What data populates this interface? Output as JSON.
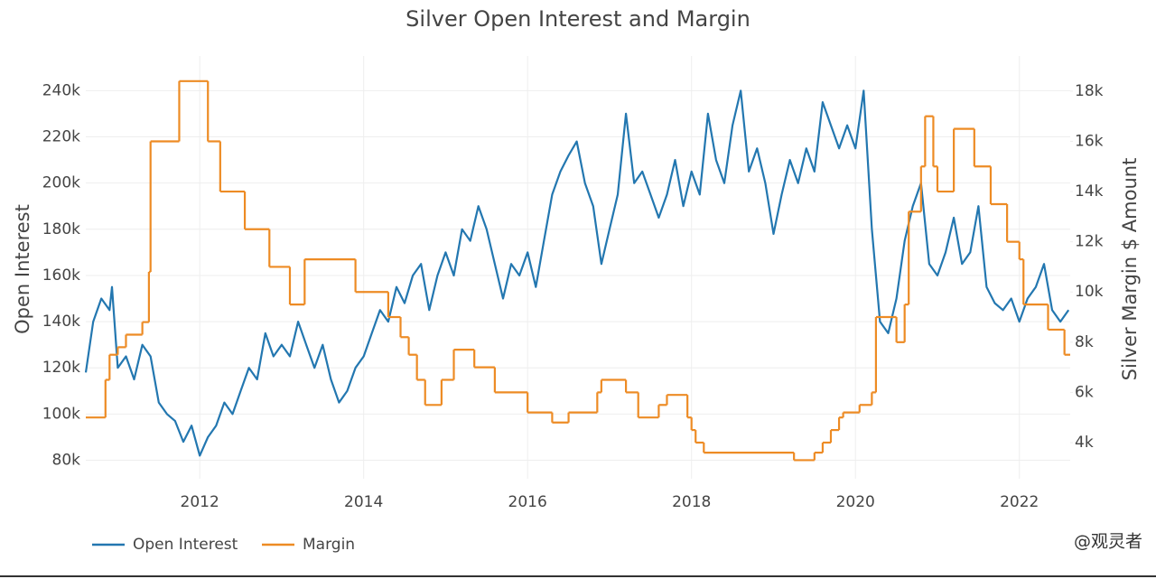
{
  "chart_data": {
    "type": "line",
    "title": "Silver Open Interest and Margin",
    "y_label": "Open Interest",
    "y2_label": "Silver Margin $ Amount",
    "xlim": [
      2010.61,
      2022.62
    ],
    "xticks": [
      2012,
      2014,
      2016,
      2018,
      2020,
      2022
    ],
    "ylim": [
      72000,
      255000
    ],
    "yticks": [
      {
        "value": 80000,
        "label": "80k"
      },
      {
        "value": 100000,
        "label": "100k"
      },
      {
        "value": 120000,
        "label": "120k"
      },
      {
        "value": 140000,
        "label": "140k"
      },
      {
        "value": 160000,
        "label": "160k"
      },
      {
        "value": 180000,
        "label": "180k"
      },
      {
        "value": 200000,
        "label": "200k"
      },
      {
        "value": 220000,
        "label": "220k"
      },
      {
        "value": 240000,
        "label": "240k"
      }
    ],
    "y2lim": [
      2560,
      19400
    ],
    "y2ticks": [
      {
        "value": 4000,
        "label": "4k"
      },
      {
        "value": 6000,
        "label": "6k"
      },
      {
        "value": 8000,
        "label": "8k"
      },
      {
        "value": 10000,
        "label": "10k"
      },
      {
        "value": 12000,
        "label": "12k"
      },
      {
        "value": 14000,
        "label": "14k"
      },
      {
        "value": 16000,
        "label": "16k"
      },
      {
        "value": 18000,
        "label": "18k"
      }
    ],
    "grid": true,
    "legend": "bottom-left",
    "watermark": "@观灵者",
    "series": [
      {
        "name": "Open Interest",
        "color": "#2377b0",
        "axis": "y",
        "shape": "linear",
        "x": [
          2010.61,
          2010.7,
          2010.8,
          2010.9,
          2010.93,
          2011.0,
          2011.1,
          2011.2,
          2011.3,
          2011.4,
          2011.5,
          2011.6,
          2011.7,
          2011.8,
          2011.9,
          2012.0,
          2012.1,
          2012.2,
          2012.3,
          2012.4,
          2012.5,
          2012.6,
          2012.7,
          2012.8,
          2012.9,
          2013.0,
          2013.1,
          2013.2,
          2013.3,
          2013.4,
          2013.5,
          2013.6,
          2013.7,
          2013.8,
          2013.9,
          2014.0,
          2014.1,
          2014.2,
          2014.3,
          2014.4,
          2014.5,
          2014.6,
          2014.7,
          2014.8,
          2014.9,
          2015.0,
          2015.1,
          2015.2,
          2015.3,
          2015.4,
          2015.5,
          2015.6,
          2015.7,
          2015.8,
          2015.9,
          2016.0,
          2016.1,
          2016.2,
          2016.3,
          2016.4,
          2016.5,
          2016.6,
          2016.7,
          2016.8,
          2016.9,
          2017.0,
          2017.1,
          2017.2,
          2017.3,
          2017.4,
          2017.5,
          2017.6,
          2017.7,
          2017.8,
          2017.9,
          2018.0,
          2018.1,
          2018.2,
          2018.3,
          2018.4,
          2018.5,
          2018.6,
          2018.7,
          2018.8,
          2018.9,
          2019.0,
          2019.1,
          2019.2,
          2019.3,
          2019.4,
          2019.5,
          2019.6,
          2019.7,
          2019.8,
          2019.9,
          2020.0,
          2020.1,
          2020.2,
          2020.3,
          2020.4,
          2020.5,
          2020.6,
          2020.7,
          2020.8,
          2020.9,
          2021.0,
          2021.1,
          2021.2,
          2021.3,
          2021.4,
          2021.5,
          2021.6,
          2021.7,
          2021.8,
          2021.9,
          2022.0,
          2022.1,
          2022.2,
          2022.3,
          2022.4,
          2022.5,
          2022.6
        ],
        "values": [
          118000,
          140000,
          150000,
          145000,
          155000,
          120000,
          125000,
          115000,
          130000,
          125000,
          105000,
          100000,
          97000,
          88000,
          95000,
          82000,
          90000,
          95000,
          105000,
          100000,
          110000,
          120000,
          115000,
          135000,
          125000,
          130000,
          125000,
          140000,
          130000,
          120000,
          130000,
          115000,
          105000,
          110000,
          120000,
          125000,
          135000,
          145000,
          140000,
          155000,
          148000,
          160000,
          165000,
          145000,
          160000,
          170000,
          160000,
          180000,
          175000,
          190000,
          180000,
          165000,
          150000,
          165000,
          160000,
          170000,
          155000,
          175000,
          195000,
          205000,
          212000,
          218000,
          200000,
          190000,
          165000,
          180000,
          195000,
          230000,
          200000,
          205000,
          195000,
          185000,
          195000,
          210000,
          190000,
          205000,
          195000,
          230000,
          210000,
          200000,
          225000,
          240000,
          205000,
          215000,
          200000,
          178000,
          195000,
          210000,
          200000,
          215000,
          205000,
          235000,
          225000,
          215000,
          225000,
          215000,
          240000,
          180000,
          140000,
          135000,
          150000,
          175000,
          190000,
          200000,
          165000,
          160000,
          170000,
          185000,
          165000,
          170000,
          190000,
          155000,
          148000,
          145000,
          150000,
          140000,
          150000,
          155000,
          165000,
          145000,
          140000,
          145000
        ]
      },
      {
        "name": "Margin",
        "color": "#ed8b24",
        "axis": "y2",
        "shape": "step",
        "x": [
          2010.61,
          2010.85,
          2010.9,
          2011.0,
          2011.1,
          2011.3,
          2011.38,
          2011.4,
          2011.75,
          2012.1,
          2012.25,
          2012.55,
          2012.85,
          2013.1,
          2013.28,
          2013.9,
          2014.3,
          2014.45,
          2014.55,
          2014.65,
          2014.75,
          2014.95,
          2015.1,
          2015.35,
          2015.6,
          2016.0,
          2016.3,
          2016.5,
          2016.85,
          2016.9,
          2017.2,
          2017.35,
          2017.6,
          2017.7,
          2017.95,
          2018.0,
          2018.05,
          2018.15,
          2019.25,
          2019.5,
          2019.6,
          2019.7,
          2019.8,
          2019.85,
          2020.05,
          2020.2,
          2020.25,
          2020.5,
          2020.6,
          2020.65,
          2020.8,
          2020.85,
          2020.95,
          2021.0,
          2021.2,
          2021.45,
          2021.65,
          2021.85,
          2022.0,
          2022.05,
          2022.35,
          2022.55
        ],
        "values": [
          5000,
          6500,
          7500,
          7800,
          8300,
          8800,
          10800,
          16000,
          18400,
          16000,
          14000,
          12500,
          11000,
          9500,
          11300,
          10000,
          9000,
          8200,
          7500,
          6500,
          5500,
          6500,
          7700,
          7000,
          6000,
          5200,
          4800,
          5200,
          6000,
          6500,
          6000,
          5000,
          5500,
          5900,
          5000,
          4500,
          4000,
          3600,
          3300,
          3600,
          4000,
          4500,
          5000,
          5200,
          5500,
          6000,
          9000,
          8000,
          9500,
          13200,
          15000,
          17000,
          15000,
          14000,
          16500,
          15000,
          13500,
          12000,
          11300,
          9500,
          8500,
          7500
        ]
      }
    ]
  }
}
